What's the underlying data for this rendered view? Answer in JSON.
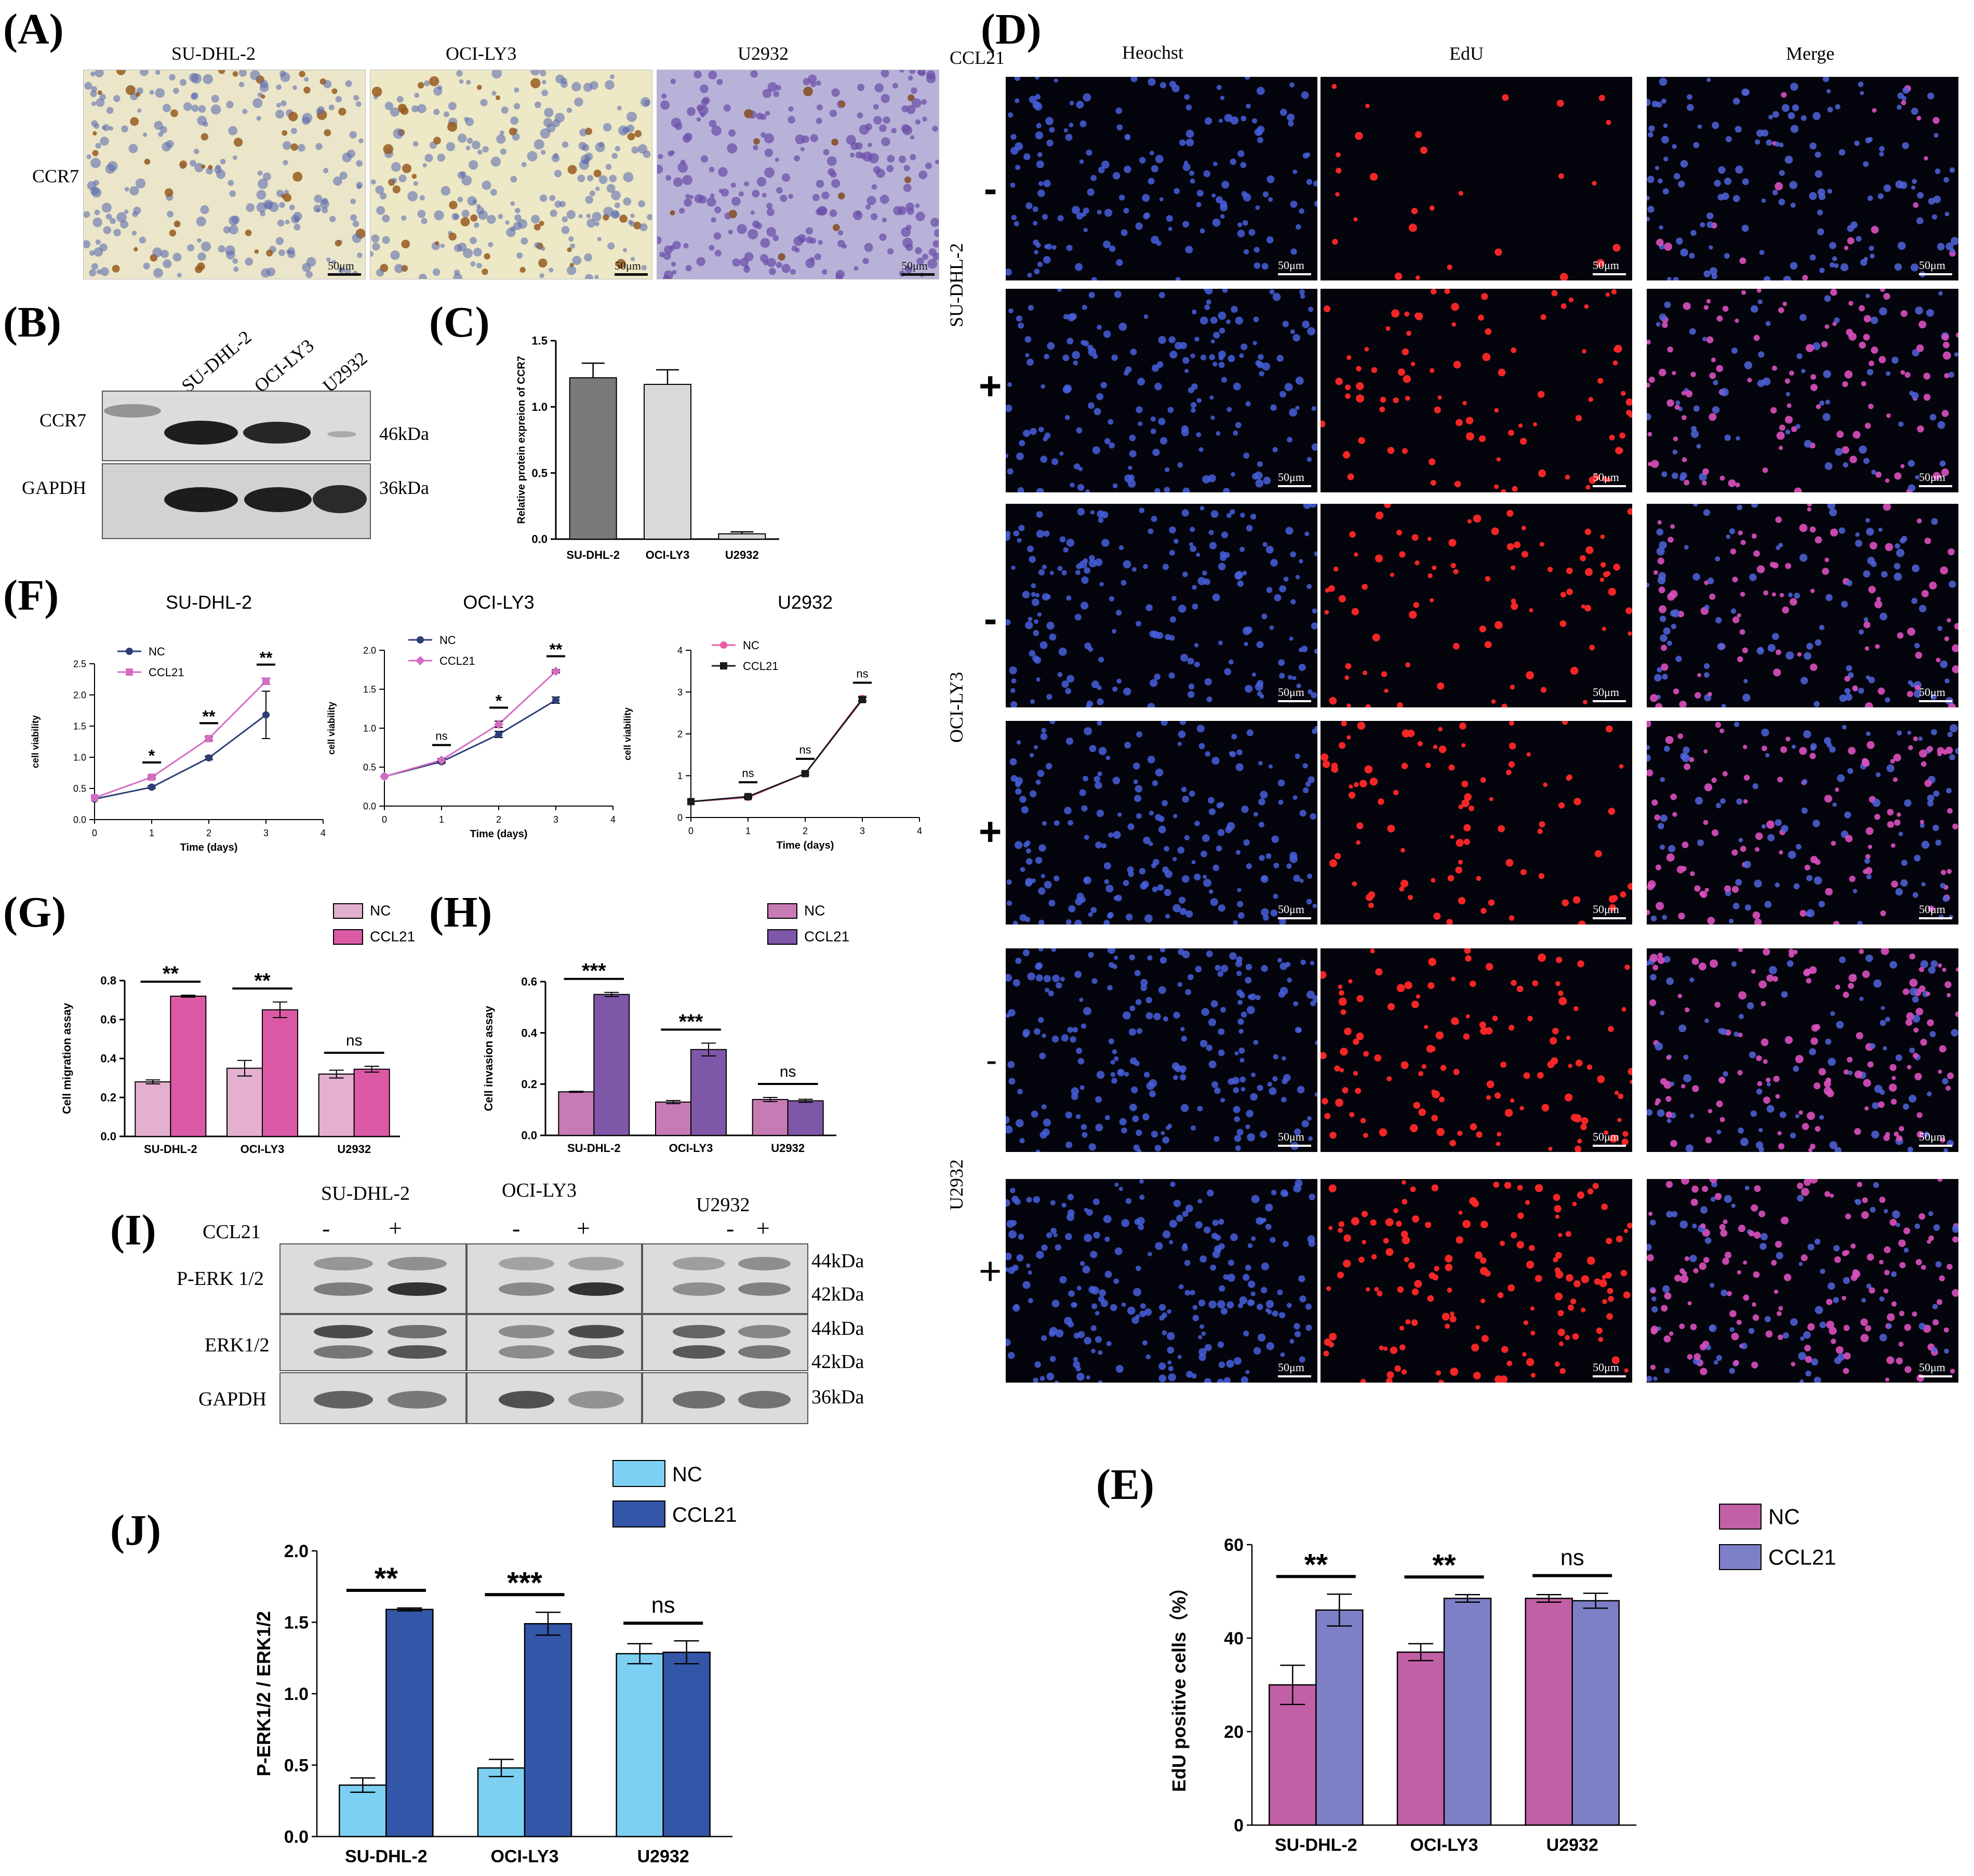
{
  "panels": {
    "A": "(A)",
    "B": "(B)",
    "C": "(C)",
    "D": "(D)",
    "E": "(E)",
    "F": "(F)",
    "G": "(G)",
    "H": "(H)",
    "I": "(I)",
    "J": "(J)"
  },
  "panelA": {
    "row_label": "CCR7",
    "columns": [
      "SU-DHL-2",
      "OCI-LY3",
      "U2932"
    ],
    "scale": "50μm"
  },
  "panelB": {
    "lanes": [
      "SU-DHL-2",
      "OCI-LY3",
      "U2932"
    ],
    "rows": [
      "CCR7",
      "GAPDH"
    ],
    "sizes": [
      "46kDa",
      "36kDa"
    ]
  },
  "panelD": {
    "ccl21_label": "CCL21",
    "columns": [
      "Heochst",
      "EdU",
      "Merge"
    ],
    "groups": [
      "SU-DHL-2",
      "OCI-LY3",
      "U2932"
    ],
    "signs": [
      "-",
      "+",
      "-",
      "+",
      "-",
      "+"
    ],
    "scale": "50μm"
  },
  "panelI": {
    "ccl21_label": "CCL21",
    "groups": [
      "SU-DHL-2",
      "OCI-LY3",
      "U2932"
    ],
    "signs": [
      "-",
      "+",
      "-",
      "+",
      "-",
      "+"
    ],
    "rows": [
      "P-ERK 1/2",
      "ERK1/2",
      "GAPDH"
    ],
    "sizes": [
      "44kDa",
      "42kDa",
      "44kDa",
      "42kDa",
      "36kDa"
    ]
  },
  "colors": {
    "C_dark": "#7a7a7a",
    "C_light": "#d9d9d9",
    "G_nc": "#e3b0cf",
    "G_ccl21": "#dc5aa5",
    "H_nc": "#c77bb4",
    "H_ccl21": "#7f57a8",
    "J_nc": "#7dd0f2",
    "J_ccl21": "#3456a8",
    "E_nc": "#c260a6",
    "E_ccl21": "#7d80c6",
    "F_nc": "#2c3e78",
    "F_ccl21": "#d56cc4",
    "F3_nc": "#e85ca8",
    "F3_ccl21": "#1b1b1b"
  },
  "chart_data": [
    {
      "id": "C",
      "type": "bar",
      "categories": [
        "SU-DHL-2",
        "OCI-LY3",
        "U2932"
      ],
      "values": [
        1.22,
        1.17,
        0.04
      ],
      "errors": [
        0.11,
        0.11,
        0.015
      ],
      "ylabel": "Relative protein expreion of CCR7",
      "ylim": [
        0,
        1.5
      ],
      "yticks": [
        "0.0",
        "0.5",
        "1.0",
        "1.5"
      ]
    },
    {
      "id": "F1",
      "type": "line",
      "title": "SU-DHL-2",
      "x": [
        0,
        1,
        2,
        3
      ],
      "xticks": [
        "0",
        "1",
        "2",
        "3",
        "4"
      ],
      "xlabel": "Time (days)",
      "ylabel": "cell viability",
      "ylim": [
        0,
        2.5
      ],
      "yticks": [
        "0.0",
        "0.5",
        "1.0",
        "1.5",
        "2.0",
        "2.5"
      ],
      "series": [
        {
          "name": "NC",
          "values": [
            0.33,
            0.52,
            0.99,
            1.68
          ],
          "errors": [
            0,
            0.02,
            0.03,
            0.38
          ]
        },
        {
          "name": "CCL21",
          "values": [
            0.35,
            0.68,
            1.3,
            2.22
          ],
          "errors": [
            0,
            0.02,
            0.03,
            0.05
          ]
        }
      ],
      "marks": [
        "*",
        "**",
        "**"
      ]
    },
    {
      "id": "F2",
      "type": "line",
      "title": "OCI-LY3",
      "x": [
        0,
        1,
        2,
        3
      ],
      "xticks": [
        "0",
        "1",
        "2",
        "3",
        "4"
      ],
      "xlabel": "Time (days)",
      "ylabel": "cell viability",
      "ylim": [
        0,
        2.0
      ],
      "yticks": [
        "0.0",
        "0.5",
        "1.0",
        "1.5",
        "2.0"
      ],
      "series": [
        {
          "name": "NC",
          "values": [
            0.38,
            0.57,
            0.92,
            1.36
          ],
          "errors": [
            0,
            0.02,
            0.04,
            0.04
          ]
        },
        {
          "name": "CCL21",
          "values": [
            0.38,
            0.59,
            1.05,
            1.73
          ],
          "errors": [
            0,
            0.02,
            0.04,
            0.02
          ]
        }
      ],
      "marks": [
        "ns",
        "*",
        "**"
      ]
    },
    {
      "id": "F3",
      "type": "line",
      "title": "U2932",
      "x": [
        0,
        1,
        2,
        3
      ],
      "xticks": [
        "0",
        "1",
        "2",
        "3",
        "4"
      ],
      "xlabel": "Time (days)",
      "ylabel": "cell viability",
      "ylim": [
        0,
        4
      ],
      "yticks": [
        "0",
        "1",
        "2",
        "3",
        "4"
      ],
      "series": [
        {
          "name": "NC",
          "values": [
            0.38,
            0.48,
            1.05,
            2.85
          ],
          "errors": [
            0,
            0.02,
            0.03,
            0.05
          ]
        },
        {
          "name": "CCL21",
          "values": [
            0.38,
            0.5,
            1.05,
            2.82
          ],
          "errors": [
            0,
            0.02,
            0.03,
            0.05
          ]
        }
      ],
      "marks": [
        "ns",
        "ns",
        "ns"
      ]
    },
    {
      "id": "G",
      "type": "bar",
      "categories": [
        "SU-DHL-2",
        "OCI-LY3",
        "U2932"
      ],
      "ylabel": "Cell migration assay",
      "ylim": [
        0,
        0.8
      ],
      "yticks": [
        "0.0",
        "0.2",
        "0.4",
        "0.6",
        "0.8"
      ],
      "series": [
        {
          "name": "NC",
          "values": [
            0.28,
            0.35,
            0.32
          ],
          "errors": [
            0.01,
            0.04,
            0.02
          ]
        },
        {
          "name": "CCL21",
          "values": [
            0.72,
            0.65,
            0.345
          ],
          "errors": [
            0.005,
            0.04,
            0.015
          ]
        }
      ],
      "marks": [
        "**",
        "**",
        "ns"
      ]
    },
    {
      "id": "H",
      "type": "bar",
      "categories": [
        "SU-DHL-2",
        "OCI-LY3",
        "U2932"
      ],
      "ylabel": "Cell invasion assay",
      "ylim": [
        0,
        0.6
      ],
      "yticks": [
        "0.0",
        "0.2",
        "0.4",
        "0.6"
      ],
      "series": [
        {
          "name": "NC",
          "values": [
            0.17,
            0.13,
            0.14
          ],
          "errors": [
            0.002,
            0.006,
            0.008
          ]
        },
        {
          "name": "CCL21",
          "values": [
            0.55,
            0.335,
            0.135
          ],
          "errors": [
            0.008,
            0.025,
            0.006
          ]
        }
      ],
      "marks": [
        "***",
        "***",
        "ns"
      ]
    },
    {
      "id": "J",
      "type": "bar",
      "categories": [
        "SU-DHL-2",
        "OCI-LY3",
        "U2932"
      ],
      "ylabel": "P-ERK1/2 / ERK1/2",
      "ylim": [
        0,
        2.0
      ],
      "yticks": [
        "0.0",
        "0.5",
        "1.0",
        "1.5",
        "2.0"
      ],
      "series": [
        {
          "name": "NC",
          "values": [
            0.36,
            0.48,
            1.28
          ],
          "errors": [
            0.05,
            0.06,
            0.07
          ]
        },
        {
          "name": "CCL21",
          "values": [
            1.59,
            1.49,
            1.29
          ],
          "errors": [
            0.01,
            0.08,
            0.08
          ]
        }
      ],
      "marks": [
        "**",
        "***",
        "ns"
      ]
    },
    {
      "id": "E",
      "type": "bar",
      "categories": [
        "SU-DHL-2",
        "OCI-LY3",
        "U2932"
      ],
      "ylabel": "EdU positive cells（%）",
      "ylim": [
        0,
        60
      ],
      "yticks": [
        "0",
        "20",
        "40",
        "60"
      ],
      "series": [
        {
          "name": "NC",
          "values": [
            30,
            37,
            48.5
          ],
          "errors": [
            4.2,
            1.8,
            0.8
          ]
        },
        {
          "name": "CCL21",
          "values": [
            46,
            48.5,
            48
          ],
          "errors": [
            3.4,
            0.8,
            1.6
          ]
        }
      ],
      "marks": [
        "**",
        "**",
        "ns"
      ]
    }
  ]
}
